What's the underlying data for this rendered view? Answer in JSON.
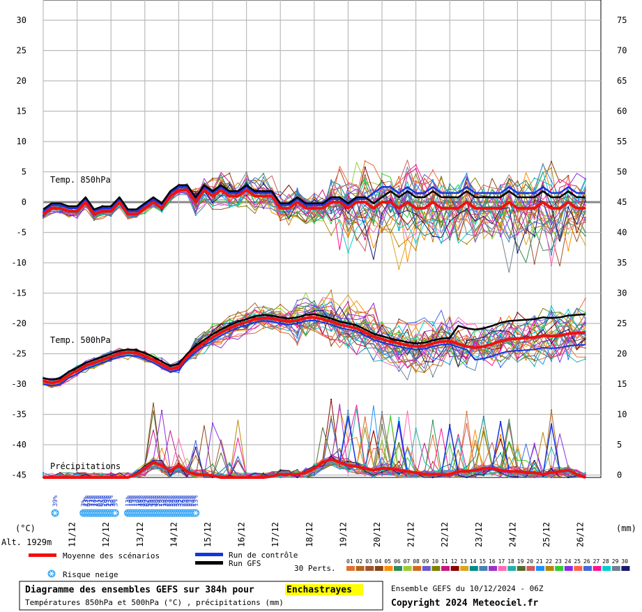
{
  "chart_data": {
    "type": "line",
    "left_axis": {
      "unit_label": "(°C)",
      "ticks": [
        30,
        25,
        20,
        15,
        10,
        5,
        0,
        -5,
        -10,
        -15,
        -20,
        -25,
        -30,
        -35,
        -40,
        -45
      ],
      "range": [
        -45,
        30
      ]
    },
    "right_axis": {
      "unit_label": "(mm)",
      "ticks": [
        75,
        70,
        65,
        60,
        55,
        50,
        45,
        40,
        35,
        30,
        25,
        20,
        15,
        10,
        5,
        0
      ],
      "range": [
        0,
        75
      ]
    },
    "altitude_label": "Alt. 1929m",
    "x_dates": [
      "11/12",
      "12/12",
      "13/12",
      "14/12",
      "15/12",
      "16/12",
      "17/12",
      "18/12",
      "19/12",
      "20/12",
      "21/12",
      "22/12",
      "23/12",
      "24/12",
      "25/12",
      "26/12"
    ],
    "annotations": {
      "t850": "Temp. 850hPa",
      "t500": "Temp. 500hPa",
      "precip": "Précipitations"
    },
    "series": [
      {
        "name": "Moyenne des scénarios",
        "color": "#ee1111",
        "t850": [
          -2,
          -1,
          -1,
          -1.5,
          -1.5,
          0,
          -2,
          -1.5,
          -1.5,
          0,
          -2,
          -2,
          -1,
          0,
          -1,
          1,
          2,
          2,
          0,
          2,
          1,
          2,
          1,
          1,
          2,
          1,
          1,
          1,
          -1,
          -1,
          0,
          -1,
          -1,
          -1,
          0,
          0,
          -1,
          0,
          0,
          -1,
          0,
          0,
          -1,
          0,
          -1,
          -1,
          0,
          -1,
          -1,
          -1,
          0,
          -1,
          -1,
          -1,
          -1,
          0,
          -1,
          -1,
          -1,
          0,
          -1,
          -1,
          0,
          -1,
          -1
        ],
        "t500": [
          -29.5,
          -29.8,
          -29.5,
          -28.5,
          -27.8,
          -27,
          -26.5,
          -26,
          -25.5,
          -25,
          -24.8,
          -24.9,
          -25.4,
          -26,
          -26.8,
          -27.5,
          -27.2,
          -25.5,
          -24.2,
          -23.2,
          -22.3,
          -21.5,
          -20.8,
          -20.2,
          -19.8,
          -19.3,
          -19.1,
          -19.2,
          -19.5,
          -19.7,
          -19.5,
          -19.1,
          -19,
          -19.3,
          -19.7,
          -20.2,
          -20.5,
          -20.8,
          -21.5,
          -22.2,
          -22.6,
          -23,
          -23.3,
          -23.6,
          -23.8,
          -23.7,
          -23.3,
          -23,
          -22.9,
          -23.4,
          -23.8,
          -24,
          -23.8,
          -23.4,
          -22.9,
          -22.6,
          -22.5,
          -22.4,
          -22.3,
          -22,
          -22.1,
          -22,
          -21.7,
          -21.6,
          -21.5
        ],
        "precip": [
          0,
          0,
          0,
          0,
          0,
          0,
          0,
          0,
          0,
          0,
          0,
          0.5,
          1.5,
          2.5,
          2,
          1,
          2,
          1,
          0.5,
          0.5,
          0.3,
          0,
          0,
          0,
          0,
          0,
          0,
          0.2,
          0.5,
          0.5,
          0.5,
          0.8,
          1.5,
          2.5,
          3,
          2.5,
          2,
          1.8,
          1.5,
          1.2,
          1.5,
          1.5,
          1.2,
          1,
          0.8,
          0.5,
          0.5,
          0.5,
          0.5,
          1,
          1,
          1.2,
          1.5,
          1.5,
          1.2,
          1,
          1,
          0.8,
          0.8,
          0.5,
          0.8,
          1,
          1.2,
          0.5,
          0
        ]
      },
      {
        "name": "Run de contrôle",
        "color": "#1535e0"
      },
      {
        "name": "Run GFS",
        "color": "#000000"
      }
    ],
    "legend_perts_label": "30 Perts.",
    "legend_pert_numbers": [
      "01",
      "02",
      "03",
      "04",
      "05",
      "06",
      "07",
      "08",
      "09",
      "10",
      "11",
      "12",
      "13",
      "14",
      "15",
      "16",
      "17",
      "18",
      "19",
      "20",
      "21",
      "22",
      "23",
      "24",
      "25",
      "26",
      "27",
      "28",
      "29",
      "30"
    ],
    "legend_pert_colors": [
      "#e07030",
      "#b5651d",
      "#a0522d",
      "#8b4513",
      "#ff8c00",
      "#2e8b57",
      "#9acd32",
      "#d2691e",
      "#6a5acd",
      "#808000",
      "#c71585",
      "#8b0000",
      "#daa520",
      "#008b8b",
      "#4682b4",
      "#9932cc",
      "#ff69b4",
      "#20b2aa",
      "#556b2f",
      "#cd5c5c",
      "#1e90ff",
      "#b8860b",
      "#32cd32",
      "#8a2be2",
      "#ff6347",
      "#4169e1",
      "#ff1493",
      "#00ced1",
      "#708090",
      "#191970"
    ],
    "snow_risk": [
      {
        "t": 1.4,
        "pct": "39%"
      },
      {
        "t": 4.75,
        "pct": "3%"
      },
      {
        "t": 5.0,
        "pct": "13%"
      },
      {
        "t": 5.25,
        "pct": "61%"
      },
      {
        "t": 5.5,
        "pct": "71%"
      },
      {
        "t": 5.75,
        "pct": "77%"
      },
      {
        "t": 6.0,
        "pct": "74%"
      },
      {
        "t": 6.25,
        "pct": "77%"
      },
      {
        "t": 6.5,
        "pct": "81%"
      },
      {
        "t": 6.75,
        "pct": "87%"
      },
      {
        "t": 7.0,
        "pct": "55%"
      },
      {
        "t": 7.25,
        "pct": "20%"
      },
      {
        "t": 7.5,
        "pct": "19%"
      },
      {
        "t": 7.75,
        "pct": "23%"
      },
      {
        "t": 8.0,
        "pct": "13%"
      },
      {
        "t": 8.25,
        "pct": "3%"
      },
      {
        "t": 8.5,
        "pct": "3%"
      },
      {
        "t": 10.0,
        "pct": "13%"
      },
      {
        "t": 10.25,
        "pct": "16%"
      },
      {
        "t": 10.5,
        "pct": "19%"
      },
      {
        "t": 10.75,
        "pct": "13%"
      },
      {
        "t": 11.0,
        "pct": "13%"
      },
      {
        "t": 11.25,
        "pct": "19%"
      },
      {
        "t": 11.5,
        "pct": "45%"
      },
      {
        "t": 11.75,
        "pct": "45%"
      },
      {
        "t": 12.0,
        "pct": "39%"
      },
      {
        "t": 12.25,
        "pct": "52%"
      },
      {
        "t": 12.5,
        "pct": "55%"
      },
      {
        "t": 12.75,
        "pct": "45%"
      },
      {
        "t": 13.0,
        "pct": "35%"
      },
      {
        "t": 13.25,
        "pct": "48%"
      },
      {
        "t": 13.5,
        "pct": "39%"
      },
      {
        "t": 13.75,
        "pct": "26%"
      },
      {
        "t": 14.0,
        "pct": "13%"
      },
      {
        "t": 14.25,
        "pct": "19%"
      },
      {
        "t": 14.5,
        "pct": "26%"
      },
      {
        "t": 14.75,
        "pct": "23%"
      },
      {
        "t": 15.0,
        "pct": "29%"
      },
      {
        "t": 15.25,
        "pct": "26%"
      },
      {
        "t": 15.5,
        "pct": "23%"
      },
      {
        "t": 15.75,
        "pct": "35%"
      },
      {
        "t": 16.0,
        "pct": "35%"
      },
      {
        "t": 16.25,
        "pct": "32%"
      },
      {
        "t": 16.5,
        "pct": "26%"
      },
      {
        "t": 16.75,
        "pct": "23%"
      },
      {
        "t": 17.0,
        "pct": "26%"
      },
      {
        "t": 17.25,
        "pct": "23%"
      },
      {
        "t": 17.5,
        "pct": "23%"
      },
      {
        "t": 17.75,
        "pct": "26%"
      },
      {
        "t": 18.0,
        "pct": "13%"
      }
    ],
    "snow_risk_label": "Risque neige",
    "legend_position": "bottom"
  },
  "footer": {
    "title_prefix": "Diagramme des ensembles GEFS sur 384h pour",
    "location": "Enchastrayes",
    "subtitle": "Températures 850hPa et 500hPa (°C) , précipitations (mm)",
    "run_info": "Ensemble GEFS du 10/12/2024 - 06Z",
    "copyright": "Copyright 2024 Meteociel.fr"
  },
  "colors": {
    "mean": "#ee1111",
    "control": "#1535e0",
    "gfs": "#000000",
    "highlight": "#ffff00",
    "snow_icon": "#3fa9f5"
  }
}
